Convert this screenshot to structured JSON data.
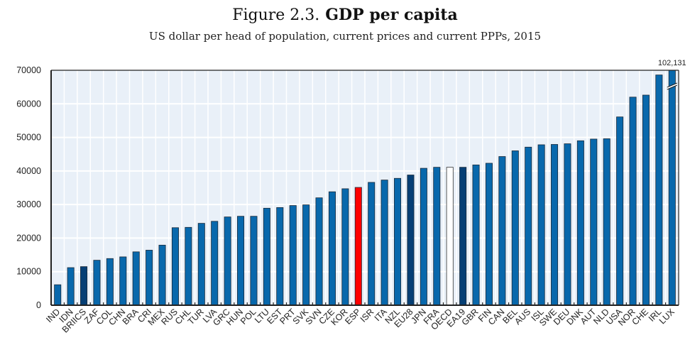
{
  "chart_data": {
    "type": "bar",
    "title_prefix": "Figure 2.3.",
    "title": "GDP per capita",
    "subtitle": "US dollar per head of population, current prices and current PPPs, 2015",
    "xlabel": "",
    "ylabel": "",
    "ylim": [
      0,
      70000
    ],
    "yticks": [
      0,
      10000,
      20000,
      30000,
      40000,
      50000,
      60000,
      70000
    ],
    "grid": true,
    "categories": [
      "IND",
      "IDN",
      "BRIICS",
      "ZAF",
      "COL",
      "CHN",
      "BRA",
      "CRI",
      "MEX",
      "RUS",
      "CHL",
      "TUR",
      "LVA",
      "GRC",
      "HUN",
      "POL",
      "LTU",
      "EST",
      "PRT",
      "SVK",
      "SVN",
      "CZE",
      "KOR",
      "ESP",
      "ISR",
      "ITA",
      "NZL",
      "EU28",
      "JPN",
      "FRA",
      "OECD",
      "EA19",
      "GBR",
      "FIN",
      "CAN",
      "BEL",
      "AUS",
      "ISL",
      "SWE",
      "DEU",
      "DNK",
      "AUT",
      "NLD",
      "USA",
      "NOR",
      "CHE",
      "IRL",
      "LUX"
    ],
    "values": [
      6100,
      11200,
      11500,
      13400,
      13900,
      14400,
      15900,
      16400,
      17900,
      23100,
      23200,
      24400,
      25000,
      26300,
      26500,
      26500,
      28900,
      29100,
      29700,
      29900,
      32000,
      33800,
      34700,
      35100,
      36600,
      37300,
      37800,
      38800,
      40800,
      41100,
      41100,
      41100,
      41800,
      42300,
      44300,
      46000,
      47100,
      47800,
      47900,
      48100,
      49000,
      49500,
      49600,
      56100,
      62000,
      62600,
      68600,
      102131
    ],
    "highlights": {
      "ESP": "red",
      "OECD": "white",
      "BRIICS": "dark",
      "EU28": "dark",
      "EA19": "dark"
    },
    "colors": {
      "default": "#0868ac",
      "dark": "#063f75",
      "red": "#ff0000",
      "white": "#ffffff",
      "outline": "#1a2a3a",
      "plot_bg": "#e9f0f8",
      "gridline": "#ffffff"
    },
    "annotations": [
      {
        "category": "LUX",
        "text": "102,131",
        "note": "bar truncated at axis maximum (break marks)"
      }
    ]
  }
}
